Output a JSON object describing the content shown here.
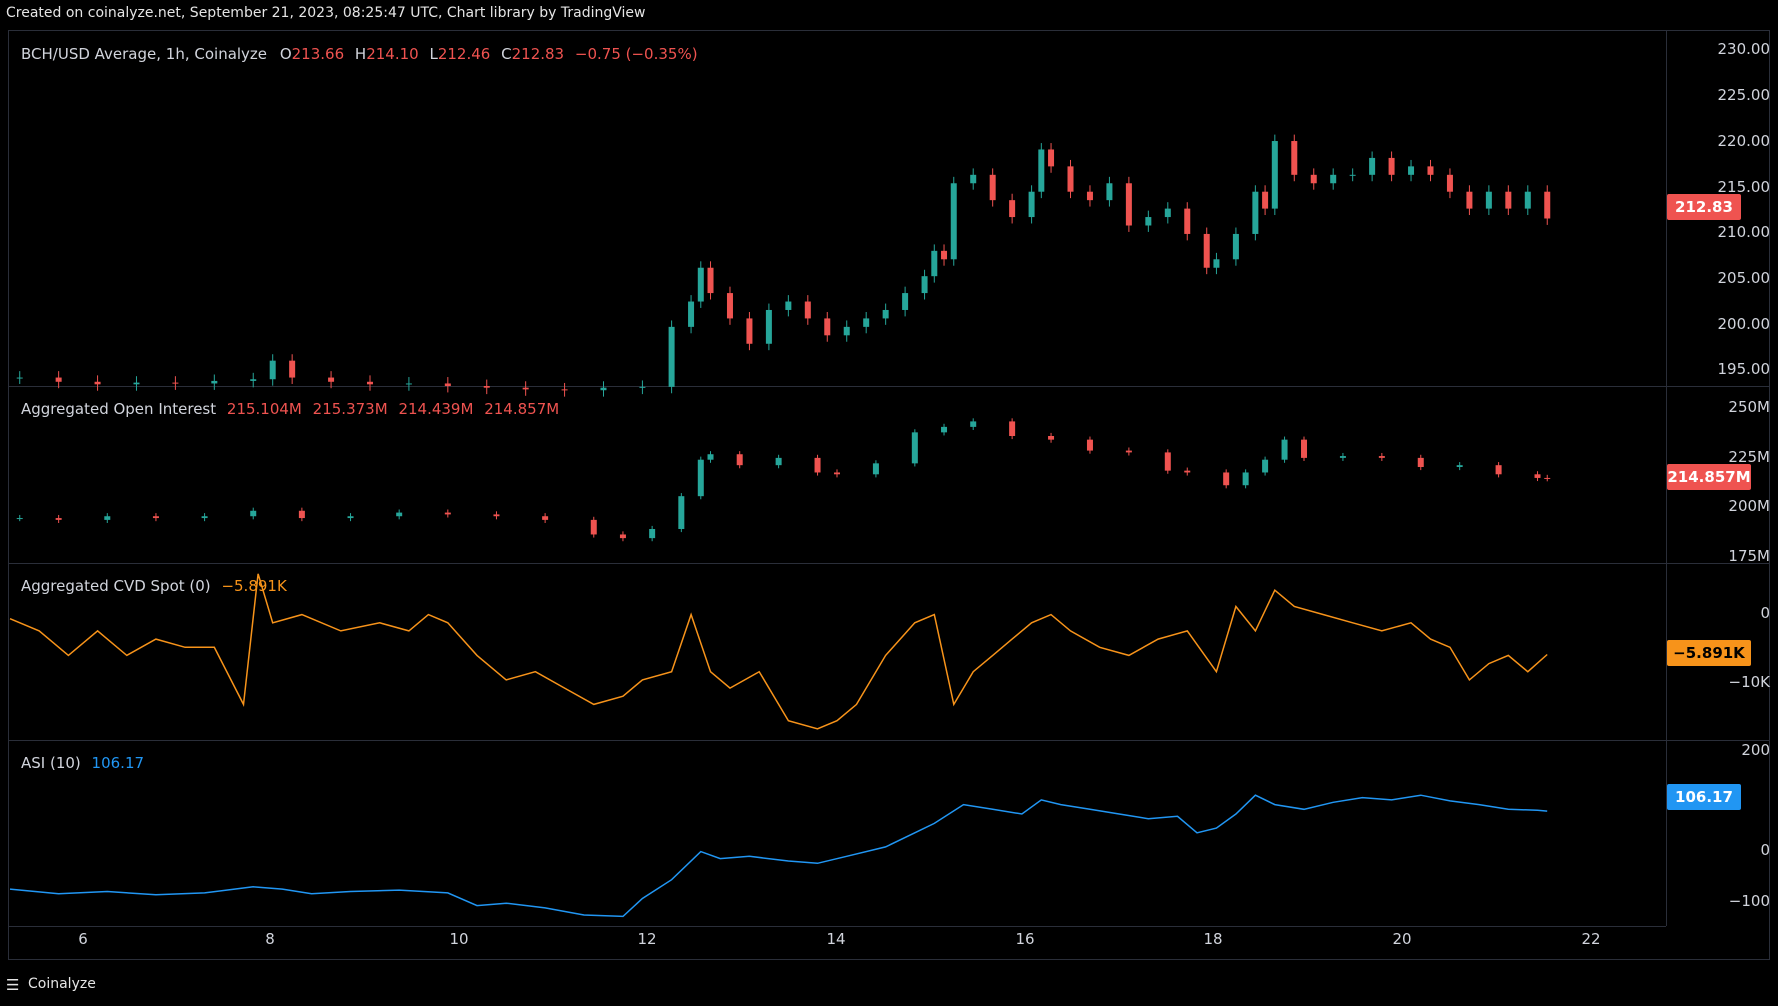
{
  "header": {
    "caption": "Created on coinalyze.net, September 21, 2023, 08:25:47 UTC, Chart library by TradingView"
  },
  "colors": {
    "up": "#26a69a",
    "down": "#ef5350",
    "cvd": "#f7931a",
    "asi": "#2196f3",
    "border": "#2a2e39"
  },
  "price_pane": {
    "title": "BCH/USD Average, 1h, Coinalyze",
    "open_label": "O",
    "open": "213.66",
    "high_label": "H",
    "high": "214.10",
    "low_label": "L",
    "low": "212.46",
    "close_label": "C",
    "close": "212.83",
    "change": "−0.75 (−0.35%)",
    "last_tag": "212.83",
    "ticks": [
      "230.00",
      "225.00",
      "220.00",
      "215.00",
      "210.00",
      "205.00",
      "200.00",
      "195.00"
    ]
  },
  "oi_pane": {
    "title": "Aggregated Open Interest",
    "values": [
      "215.104M",
      "215.373M",
      "214.439M",
      "214.857M"
    ],
    "last_tag": "214.857M",
    "ticks": [
      "250M",
      "225M",
      "200M",
      "175M"
    ]
  },
  "cvd_pane": {
    "title": "Aggregated CVD Spot (0)",
    "value": "−5.891K",
    "last_tag": "−5.891K",
    "ticks": [
      "0",
      "−10K"
    ]
  },
  "asi_pane": {
    "title": "ASI (10)",
    "value": "106.17",
    "last_tag": "106.17",
    "ticks": [
      "200",
      "0",
      "−100"
    ]
  },
  "time_axis": {
    "labels": [
      "6",
      "8",
      "10",
      "12",
      "14",
      "16",
      "18",
      "20",
      "22"
    ]
  },
  "footer": {
    "menu_icon": "hamburger-icon",
    "brand": "Coinalyze"
  },
  "chart_data": [
    {
      "type": "candlestick",
      "title": "BCH/USD Average, 1h, Coinalyze",
      "ylim": [
        193,
        231
      ],
      "xlim": [
        5.5,
        22.5
      ],
      "x": [
        5.6,
        6.0,
        6.4,
        6.8,
        7.2,
        7.6,
        8.0,
        8.2,
        8.4,
        8.8,
        9.2,
        9.6,
        10.0,
        10.4,
        10.8,
        11.2,
        11.6,
        12.0,
        12.3,
        12.5,
        12.6,
        12.7,
        12.9,
        13.1,
        13.3,
        13.5,
        13.7,
        13.9,
        14.1,
        14.3,
        14.5,
        14.7,
        14.9,
        15.0,
        15.1,
        15.2,
        15.4,
        15.6,
        15.8,
        16.0,
        16.1,
        16.2,
        16.4,
        16.6,
        16.8,
        17.0,
        17.2,
        17.4,
        17.6,
        17.8,
        17.9,
        18.1,
        18.3,
        18.4,
        18.5,
        18.7,
        18.9,
        19.1,
        19.3,
        19.5,
        19.7,
        19.9,
        20.1,
        20.3,
        20.5,
        20.7,
        20.9,
        21.1,
        21.3
      ],
      "close": [
        194,
        193.5,
        193.2,
        193.4,
        193.3,
        193.6,
        193.8,
        196,
        194,
        193.5,
        193.2,
        193.3,
        193,
        192.8,
        192.6,
        192.5,
        192.8,
        192.9,
        200,
        203,
        207,
        204,
        201,
        198,
        202,
        203,
        201,
        199,
        200,
        201,
        202,
        204,
        206,
        209,
        208,
        217,
        218,
        215,
        213,
        216,
        221,
        219,
        216,
        215,
        217,
        212,
        213,
        214,
        211,
        207,
        208,
        211,
        216,
        214,
        222,
        218,
        217,
        218,
        218,
        220,
        218,
        219,
        218,
        216,
        214,
        216,
        214,
        216,
        212.83
      ]
    },
    {
      "type": "candlestick",
      "title": "Aggregated Open Interest",
      "ylim": [
        170,
        255
      ],
      "xlim": [
        5.5,
        22.5
      ],
      "x": [
        5.6,
        6.0,
        6.5,
        7.0,
        7.5,
        8.0,
        8.5,
        9.0,
        9.5,
        10.0,
        10.5,
        11.0,
        11.5,
        11.8,
        12.1,
        12.4,
        12.6,
        12.7,
        13.0,
        13.4,
        13.8,
        14.0,
        14.4,
        14.8,
        15.1,
        15.4,
        15.8,
        16.2,
        16.6,
        17.0,
        17.4,
        17.6,
        18.0,
        18.2,
        18.4,
        18.6,
        18.8,
        19.2,
        19.6,
        20.0,
        20.4,
        20.8,
        21.2,
        21.3
      ],
      "close": [
        193,
        192,
        194,
        193,
        194,
        197,
        193,
        194,
        196,
        195,
        194,
        192,
        184,
        182,
        187,
        205,
        225,
        228,
        222,
        226,
        218,
        217,
        223,
        240,
        243,
        246,
        238,
        236,
        230,
        229,
        219,
        218,
        211,
        218,
        225,
        236,
        226,
        227,
        226,
        221,
        222,
        217,
        215,
        214.857
      ]
    },
    {
      "type": "line",
      "title": "Aggregated CVD Spot (0)",
      "ylim": [
        -16,
        3
      ],
      "xlim": [
        5.5,
        22.5
      ],
      "x": [
        5.5,
        5.8,
        6.1,
        6.4,
        6.7,
        7.0,
        7.3,
        7.6,
        7.9,
        8.05,
        8.2,
        8.5,
        8.9,
        9.3,
        9.6,
        9.8,
        10.0,
        10.3,
        10.6,
        10.9,
        11.2,
        11.5,
        11.8,
        12.0,
        12.3,
        12.5,
        12.7,
        12.9,
        13.2,
        13.5,
        13.8,
        14.0,
        14.2,
        14.5,
        14.8,
        15.0,
        15.2,
        15.4,
        15.6,
        15.8,
        16.0,
        16.2,
        16.4,
        16.7,
        17.0,
        17.3,
        17.6,
        17.9,
        18.1,
        18.3,
        18.5,
        18.7,
        19.0,
        19.3,
        19.6,
        19.9,
        20.1,
        20.3,
        20.5,
        20.7,
        20.9,
        21.1,
        21.3
      ],
      "values": [
        -1.5,
        -3,
        -6,
        -3,
        -6,
        -4,
        -5,
        -5,
        -12,
        4,
        -2,
        -1,
        -3,
        -2,
        -3,
        -1,
        -2,
        -6,
        -9,
        -8,
        -10,
        -12,
        -11,
        -9,
        -8,
        -1,
        -8,
        -10,
        -8,
        -14,
        -15,
        -14,
        -12,
        -6,
        -2,
        -1,
        -12,
        -8,
        -6,
        -4,
        -2,
        -1,
        -3,
        -5,
        -6,
        -4,
        -3,
        -8,
        0,
        -3,
        2,
        0,
        -1,
        -2,
        -3,
        -2,
        -4,
        -5,
        -9,
        -7,
        -6,
        -8,
        -5.891
      ]
    },
    {
      "type": "line",
      "title": "ASI (10)",
      "ylim": [
        -130,
        215
      ],
      "xlim": [
        5.5,
        22.5
      ],
      "x": [
        5.5,
        6.0,
        6.5,
        7.0,
        7.5,
        8.0,
        8.3,
        8.6,
        9.0,
        9.5,
        10.0,
        10.3,
        10.6,
        11.0,
        11.4,
        11.8,
        12.0,
        12.3,
        12.6,
        12.8,
        13.1,
        13.5,
        13.8,
        14.1,
        14.5,
        14.8,
        15.0,
        15.3,
        15.6,
        15.9,
        16.1,
        16.3,
        16.6,
        16.9,
        17.2,
        17.5,
        17.7,
        17.9,
        18.1,
        18.3,
        18.5,
        18.8,
        19.1,
        19.4,
        19.7,
        20.0,
        20.3,
        20.6,
        20.9,
        21.2,
        21.3
      ],
      "values": [
        -60,
        -70,
        -65,
        -72,
        -68,
        -55,
        -60,
        -70,
        -65,
        -62,
        -68,
        -95,
        -90,
        -100,
        -115,
        -118,
        -80,
        -40,
        20,
        5,
        10,
        0,
        -5,
        10,
        30,
        60,
        80,
        120,
        110,
        100,
        130,
        120,
        110,
        100,
        90,
        95,
        60,
        70,
        100,
        140,
        120,
        110,
        125,
        135,
        130,
        140,
        128,
        120,
        110,
        108,
        106.17
      ]
    }
  ]
}
